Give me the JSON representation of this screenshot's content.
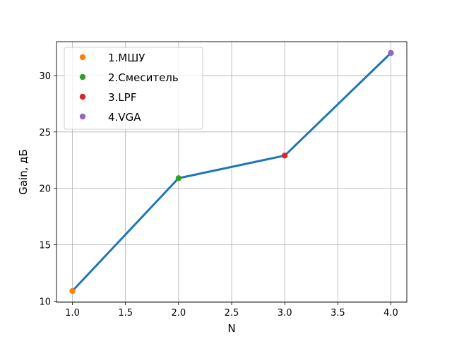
{
  "chart_data": {
    "type": "line",
    "title": "",
    "xlabel": "N",
    "ylabel": "Gain, дБ",
    "xlim": [
      0.85,
      4.15
    ],
    "ylim": [
      9.9,
      33.0
    ],
    "x_ticks": [
      1.0,
      1.5,
      2.0,
      2.5,
      3.0,
      3.5,
      4.0
    ],
    "x_tick_labels": [
      "1.0",
      "1.5",
      "2.0",
      "2.5",
      "3.0",
      "3.5",
      "4.0"
    ],
    "y_ticks": [
      10,
      15,
      20,
      25,
      30
    ],
    "y_tick_labels": [
      "10",
      "15",
      "20",
      "25",
      "30"
    ],
    "grid": true,
    "legend_position": "top-left",
    "line": {
      "x": [
        1,
        2,
        3,
        4
      ],
      "y": [
        10.9,
        20.9,
        22.9,
        32.0
      ],
      "color": "#1f77b4"
    },
    "points": [
      {
        "name": "1.МШУ",
        "x": 1,
        "y": 10.9,
        "color": "#ff7f0e"
      },
      {
        "name": "2.Смеситель",
        "x": 2,
        "y": 20.9,
        "color": "#2ca02c"
      },
      {
        "name": "3.LPF",
        "x": 3,
        "y": 22.9,
        "color": "#d62728"
      },
      {
        "name": "4.VGA",
        "x": 4,
        "y": 32.0,
        "color": "#9467bd"
      }
    ]
  }
}
